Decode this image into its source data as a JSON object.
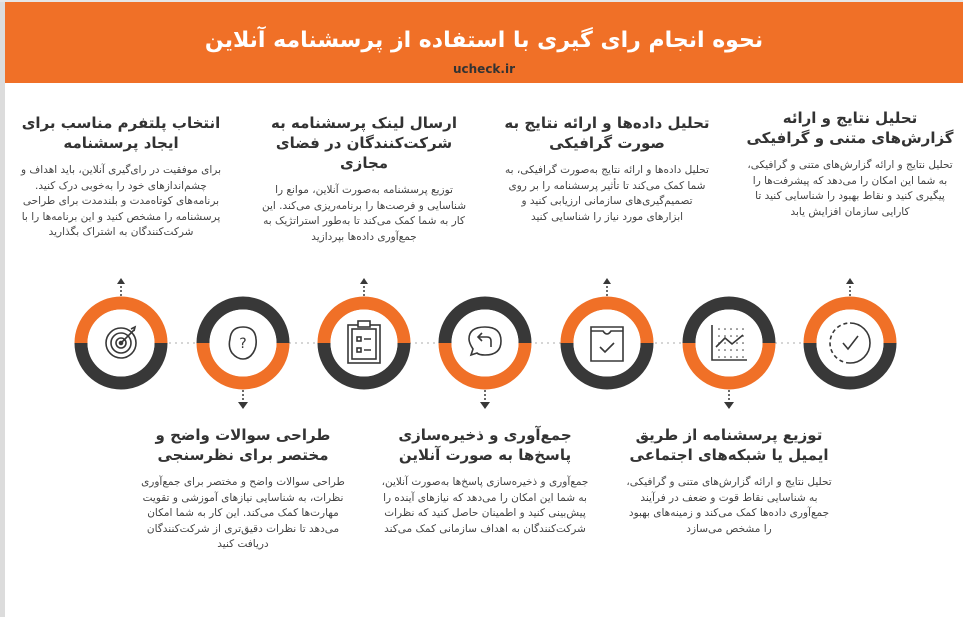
{
  "header": {
    "title": "نحوه انجام رای گیری با استفاده از پرسشنامه آنلاین",
    "site": "ucheck.ir"
  },
  "colors": {
    "accent": "#f07027",
    "dark": "#383838"
  },
  "steps": [
    {
      "icon": "target-icon",
      "title": "انتخاب پلتفرم مناسب برای ایجاد پرسشنامه",
      "text": "برای موفقیت در رای‌گیری آنلاین، باید اهداف و چشم‌اندازهای خود را به‌خوبی درک کنید. برنامه‌های کوتاه‌مدت و بلندمدت برای طراحی پرسشنامه را مشخص کنید و این برنامه‌ها را با شرکت‌کنندگان به اشتراک بگذارید"
    },
    {
      "icon": "head-question-icon",
      "title": "طراحی سوالات واضح و مختصر برای نظرسنجی",
      "text": "طراحی سوالات واضح و مختصر برای جمع‌آوری نظرات، به شناسایی نیازهای آموزشی و تقویت مهارت‌ها کمک می‌کند. این کار به شما امکان می‌دهد تا نظرات دقیق‌تری از شرکت‌کنندگان دریافت کنید"
    },
    {
      "icon": "clipboard-checklist-icon",
      "title": "ارسال لینک پرسشنامه به شرکت‌کنندگان در فضای مجازی",
      "text": "توزیع پرسشنامه به‌صورت آنلاین، موانع را شناسایی و فرصت‌ها را برنامه‌ریزی می‌کند. این کار به شما کمک می‌کند تا به‌طور استراتژیک به جمع‌آوری داده‌ها بپردازید"
    },
    {
      "icon": "chat-reply-icon",
      "title": "جمع‌آوری و ذخیره‌سازی پاسخ‌ها به صورت آنلاین",
      "text": "جمع‌آوری و ذخیره‌سازی پاسخ‌ها به‌صورت آنلاین، به شما این امکان را می‌دهد که نیازهای آینده را پیش‌بینی کنید و اطمینان حاصل کنید که نظرات شرکت‌کنندگان به اهداف سازمانی کمک می‌کند"
    },
    {
      "icon": "box-check-icon",
      "title": "تحلیل داده‌ها و ارائه نتایج به صورت گرافیکی",
      "text": "تحلیل داده‌ها و ارائه نتایج به‌صورت گرافیکی، به شما کمک می‌کند تا تأثیر پرسشنامه را بر روی تصمیم‌گیری‌های سازمانی ارزیابی کنید و ابزارهای مورد نیاز را شناسایی کنید"
    },
    {
      "icon": "line-chart-icon",
      "title": "توزیع پرسشنامه از طریق ایمیل یا شبکه‌های اجتماعی",
      "text": "تحلیل نتایج و ارائه گزارش‌های متنی و گرافیکی، به شناسایی نقاط قوت و ضعف در فرآیند جمع‌آوری داده‌ها کمک می‌کند و زمینه‌های بهبود را مشخص می‌سازد"
    },
    {
      "icon": "circle-check-icon",
      "title": "تحلیل نتایج و ارائه گزارش‌های متنی و گرافیکی",
      "text": "تحلیل نتایج و ارائه گزارش‌های متنی و گرافیکی، به شما این امکان را می‌دهد که پیشرفت‌ها را پیگیری کنید و نقاط بهبود را شناسایی کنید تا کارایی سازمان افزایش یابد"
    }
  ]
}
